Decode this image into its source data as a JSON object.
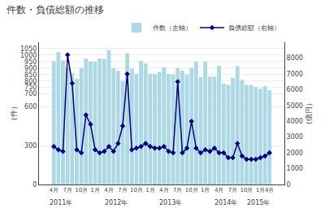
{
  "chart_data": {
    "type": "bar",
    "title": "件数・負債総額の推移",
    "ylabel": "（件）",
    "y2label": "（億円）",
    "categories": [
      "4月",
      null,
      null,
      "7月",
      null,
      null,
      "10月",
      null,
      null,
      "1月",
      null,
      null,
      "4月",
      null,
      null,
      "7月",
      null,
      null,
      "10月",
      null,
      null,
      "1月",
      null,
      null,
      "4月",
      null,
      null,
      "7月",
      null,
      null,
      "10月",
      null,
      null,
      "1月",
      null,
      null,
      "4月",
      null,
      null,
      "7月",
      null,
      null,
      "10月",
      null,
      null,
      "1月",
      null,
      "4月"
    ],
    "series": [
      {
        "name": "件数（左軸）",
        "type": "bar",
        "color": "#ADD8E6",
        "values": [
          955,
          1025,
          960,
          905,
          860,
          815,
          900,
          975,
          950,
          950,
          975,
          970,
          1040,
          900,
          880,
          800,
          1015,
          895,
          855,
          955,
          935,
          855,
          855,
          870,
          905,
          855,
          850,
          900,
          880,
          850,
          900,
          950,
          830,
          950,
          835,
          835,
          920,
          780,
          770,
          825,
          915,
          810,
          770,
          770,
          755,
          740,
          760,
          730
        ]
      },
      {
        "name": "負債総額（右軸）",
        "type": "line",
        "axis": "y2",
        "color": "#000080",
        "marker": "diamond",
        "values": [
          2400,
          2200,
          2100,
          8200,
          6400,
          2200,
          2000,
          4400,
          3800,
          2200,
          2000,
          2100,
          2400,
          2100,
          2600,
          3700,
          7000,
          2200,
          2300,
          2400,
          2600,
          2400,
          2300,
          2300,
          2400,
          2100,
          2000,
          6500,
          2000,
          2300,
          4000,
          2300,
          2000,
          2200,
          2100,
          2300,
          2000,
          2000,
          1700,
          1700,
          2600,
          1800,
          1600,
          1600,
          1600,
          1700,
          1800,
          2000
        ]
      }
    ],
    "ylim": [
      0,
      1100
    ],
    "yticks": [
      0,
      300,
      600,
      700,
      750,
      800,
      850,
      900,
      950,
      1000,
      1050
    ],
    "y2lim": [
      0,
      9000
    ],
    "y2ticks": [
      0,
      1000,
      2000,
      3000,
      4000,
      5000,
      6000,
      7000,
      8000
    ],
    "grid": true,
    "legend": "upper right",
    "annotations": [
      {
        "text": "2011年",
        "x": 1.5
      },
      {
        "text": "2012年",
        "x": 13.5
      },
      {
        "text": "2013年",
        "x": 25.5
      },
      {
        "text": "2014年",
        "x": 37.5
      },
      {
        "text": "2015年",
        "x": 44.5
      }
    ]
  }
}
